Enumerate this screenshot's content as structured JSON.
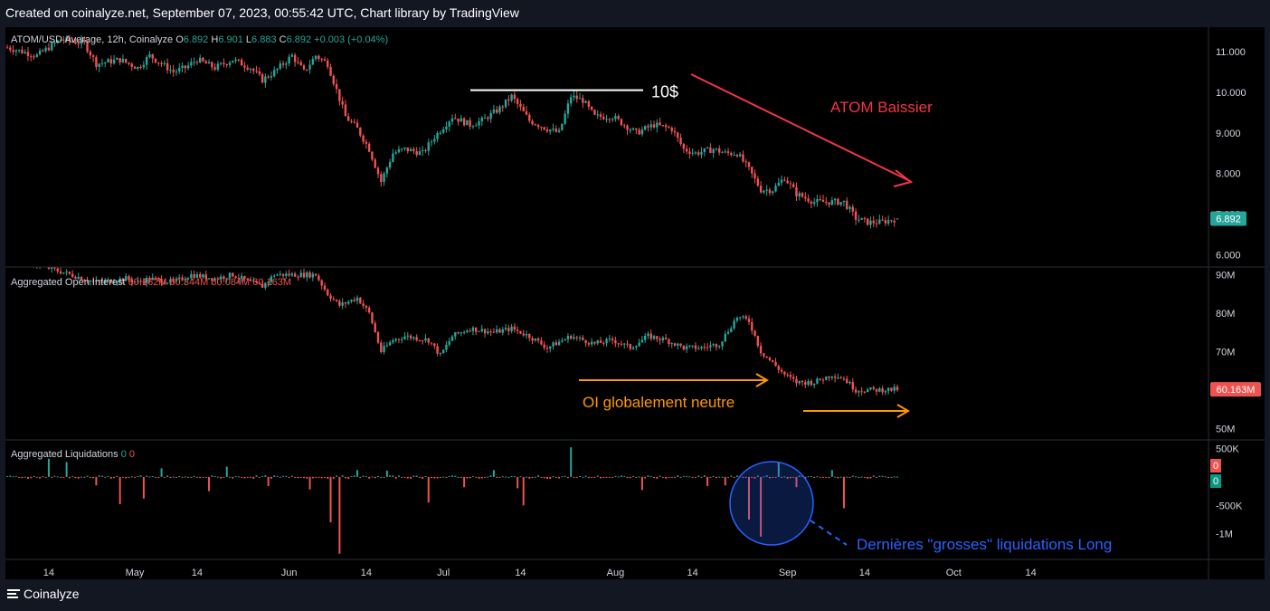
{
  "banner": "Created on coinalyze.net, September 07, 2023, 00:55:42 UTC, Chart library by TradingView",
  "footer": {
    "logo_text": "Coinalyze"
  },
  "colors": {
    "up": "#26a69a",
    "down": "#ef5350",
    "bg": "#000000",
    "grid": "#2a2e39",
    "axis_text": "#d1d4dc",
    "white_annotation": "#ffffff",
    "red_annotation": "#f23645",
    "orange_annotation": "#ff9800",
    "blue_annotation": "#2962ff"
  },
  "chart_data": [
    {
      "type": "candlestick",
      "pane": "price",
      "legend": {
        "symbol": "ATOM/USD Average, 12h, Coinalyze",
        "o_label": "O",
        "o": "6.892",
        "h_label": "H",
        "h": "6.901",
        "l_label": "L",
        "l": "6.883",
        "c_label": "C",
        "c": "6.892",
        "change": "+0.003 (+0.04%)"
      },
      "ylim": [
        5.7,
        11.6
      ],
      "yticks": [
        "11.000",
        "10.000",
        "9.000",
        "8.000",
        "7.000",
        "6.000"
      ],
      "ytick_values": [
        11,
        10,
        9,
        8,
        7,
        6
      ],
      "last_value_label": "6.892",
      "start_date": "2023-04-01",
      "interval_hours": 12,
      "keypoints": [
        [
          0,
          11.1
        ],
        [
          10,
          10.9
        ],
        [
          18,
          11.3
        ],
        [
          26,
          11.2
        ],
        [
          30,
          10.7
        ],
        [
          38,
          10.8
        ],
        [
          44,
          10.6
        ],
        [
          48,
          10.9
        ],
        [
          56,
          10.5
        ],
        [
          60,
          10.6
        ],
        [
          64,
          10.8
        ],
        [
          70,
          10.6
        ],
        [
          76,
          10.8
        ],
        [
          82,
          10.6
        ],
        [
          86,
          10.3
        ],
        [
          90,
          10.5
        ],
        [
          96,
          10.9
        ],
        [
          100,
          10.5
        ],
        [
          104,
          10.9
        ],
        [
          108,
          10.7
        ],
        [
          114,
          9.4
        ],
        [
          118,
          9.1
        ],
        [
          122,
          8.6
        ],
        [
          126,
          7.8
        ],
        [
          130,
          8.5
        ],
        [
          134,
          8.6
        ],
        [
          140,
          8.5
        ],
        [
          144,
          8.9
        ],
        [
          150,
          9.4
        ],
        [
          156,
          9.2
        ],
        [
          160,
          9.3
        ],
        [
          166,
          9.6
        ],
        [
          170,
          9.9
        ],
        [
          176,
          9.3
        ],
        [
          182,
          9.1
        ],
        [
          186,
          9.0
        ],
        [
          190,
          9.9
        ],
        [
          194,
          9.8
        ],
        [
          198,
          9.4
        ],
        [
          204,
          9.4
        ],
        [
          208,
          9.2
        ],
        [
          212,
          9.0
        ],
        [
          218,
          9.2
        ],
        [
          224,
          9.1
        ],
        [
          228,
          8.6
        ],
        [
          232,
          8.5
        ],
        [
          238,
          8.6
        ],
        [
          242,
          8.5
        ],
        [
          246,
          8.5
        ],
        [
          250,
          8.1
        ],
        [
          254,
          7.6
        ],
        [
          258,
          7.6
        ],
        [
          262,
          7.9
        ],
        [
          266,
          7.5
        ],
        [
          272,
          7.3
        ],
        [
          278,
          7.3
        ],
        [
          282,
          7.3
        ],
        [
          286,
          6.9
        ],
        [
          290,
          6.8
        ],
        [
          294,
          6.8
        ],
        [
          300,
          6.89
        ]
      ],
      "annotations": [
        {
          "text": "10$",
          "value": 10.05
        },
        {
          "text": "ATOM Baissier"
        }
      ]
    },
    {
      "type": "candlestick",
      "pane": "open_interest",
      "legend": {
        "title": "Aggregated Open Interest",
        "o": "60.162M",
        "h": "60.344M",
        "l": "60.084M",
        "c": "60.163M"
      },
      "ylim": [
        47,
        92
      ],
      "yticks": [
        "90M",
        "80M",
        "70M",
        "50M"
      ],
      "ytick_values": [
        90,
        80,
        70,
        50
      ],
      "last_value_label": "60.163M",
      "keypoints": [
        [
          0,
          95
        ],
        [
          30,
          88
        ],
        [
          40,
          89
        ],
        [
          44,
          88
        ],
        [
          48,
          89
        ],
        [
          56,
          88
        ],
        [
          62,
          90
        ],
        [
          70,
          89
        ],
        [
          76,
          90
        ],
        [
          82,
          88
        ],
        [
          86,
          87
        ],
        [
          90,
          90
        ],
        [
          104,
          90
        ],
        [
          108,
          85
        ],
        [
          112,
          82
        ],
        [
          118,
          84
        ],
        [
          122,
          80
        ],
        [
          126,
          70
        ],
        [
          130,
          73
        ],
        [
          134,
          74
        ],
        [
          142,
          73
        ],
        [
          146,
          69
        ],
        [
          150,
          74
        ],
        [
          156,
          76
        ],
        [
          164,
          75
        ],
        [
          170,
          76
        ],
        [
          176,
          74
        ],
        [
          182,
          71
        ],
        [
          190,
          74
        ],
        [
          198,
          72
        ],
        [
          204,
          73
        ],
        [
          210,
          71
        ],
        [
          216,
          74
        ],
        [
          222,
          73
        ],
        [
          228,
          71
        ],
        [
          234,
          71
        ],
        [
          240,
          72
        ],
        [
          246,
          79
        ],
        [
          250,
          78
        ],
        [
          254,
          70
        ],
        [
          258,
          67
        ],
        [
          262,
          64
        ],
        [
          266,
          62
        ],
        [
          272,
          62
        ],
        [
          278,
          64
        ],
        [
          282,
          63
        ],
        [
          286,
          60
        ],
        [
          292,
          60
        ],
        [
          300,
          60.16
        ]
      ],
      "annotations": [
        {
          "text": "OI globalement neutre"
        }
      ]
    },
    {
      "type": "bar",
      "pane": "liquidations",
      "legend": {
        "title": "Aggregated Liquidations",
        "long": "0",
        "short": "0"
      },
      "ylim": [
        -1450000,
        650000
      ],
      "yticks": [
        "500K",
        "-500K",
        "-1M"
      ],
      "ytick_values": [
        500000,
        -500000,
        -1000000
      ],
      "last_value_labels": [
        "0",
        "0"
      ],
      "spikes": [
        {
          "i": 14,
          "v": 320000
        },
        {
          "i": 20,
          "v": 260000
        },
        {
          "i": 30,
          "v": -150000
        },
        {
          "i": 38,
          "v": -480000
        },
        {
          "i": 46,
          "v": -380000
        },
        {
          "i": 52,
          "v": 150000
        },
        {
          "i": 68,
          "v": -250000
        },
        {
          "i": 74,
          "v": 180000
        },
        {
          "i": 88,
          "v": -160000
        },
        {
          "i": 102,
          "v": -220000
        },
        {
          "i": 112,
          "v": -1350000
        },
        {
          "i": 109,
          "v": -800000
        },
        {
          "i": 118,
          "v": 120000
        },
        {
          "i": 128,
          "v": 110000
        },
        {
          "i": 142,
          "v": -450000
        },
        {
          "i": 154,
          "v": -180000
        },
        {
          "i": 164,
          "v": 120000
        },
        {
          "i": 172,
          "v": -200000
        },
        {
          "i": 174,
          "v": -500000
        },
        {
          "i": 190,
          "v": 520000
        },
        {
          "i": 214,
          "v": -230000
        },
        {
          "i": 236,
          "v": -160000
        },
        {
          "i": 242,
          "v": -150000
        },
        {
          "i": 254,
          "v": -1050000
        },
        {
          "i": 250,
          "v": -750000
        },
        {
          "i": 260,
          "v": 250000
        },
        {
          "i": 266,
          "v": -180000
        },
        {
          "i": 278,
          "v": 120000
        },
        {
          "i": 282,
          "v": -550000
        }
      ],
      "annotations": [
        {
          "text": "Dernières \"grosses\" liquidations Long"
        }
      ]
    }
  ],
  "x_axis": {
    "labels": [
      {
        "label": "14",
        "index": 14
      },
      {
        "label": "May",
        "index": 43
      },
      {
        "label": "14",
        "index": 64
      },
      {
        "label": "Jun",
        "index": 95
      },
      {
        "label": "14",
        "index": 121
      },
      {
        "label": "Jul",
        "index": 147
      },
      {
        "label": "14",
        "index": 173
      },
      {
        "label": "Aug",
        "index": 205
      },
      {
        "label": "14",
        "index": 231
      },
      {
        "label": "Sep",
        "index": 263
      },
      {
        "label": "14",
        "index": 289
      },
      {
        "label": "Oct",
        "index": 319
      },
      {
        "label": "14",
        "index": 345
      }
    ]
  }
}
